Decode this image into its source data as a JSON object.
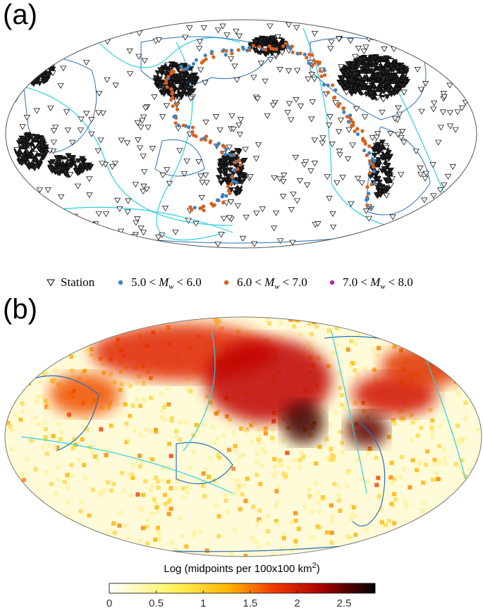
{
  "panels": [
    {
      "label": "(a)"
    },
    {
      "label": "(b)"
    }
  ],
  "legend": [
    {
      "name": "Station",
      "marker": "triangle",
      "color": "#000000"
    },
    {
      "prefix": "5.0 <",
      "symbol": "M",
      "subscript": "w",
      "suffix": "< 6.0",
      "marker": "dot",
      "color": "#3b84c4"
    },
    {
      "prefix": "6.0 <",
      "symbol": "M",
      "subscript": "w",
      "suffix": "< 7.0",
      "marker": "dot",
      "color": "#d9601c"
    },
    {
      "prefix": "7.0 <",
      "symbol": "M",
      "subscript": "w",
      "suffix": "< 8.0",
      "marker": "dot",
      "color": "#c21fa8"
    }
  ],
  "colorbar": {
    "label": "Log (midpoints per 100x100 km",
    "superscript": "2",
    "label_end": ")",
    "lim": [
      0,
      2.83
    ],
    "ticks": [
      0,
      0.5,
      1,
      1.5,
      2,
      2.5
    ]
  }
}
